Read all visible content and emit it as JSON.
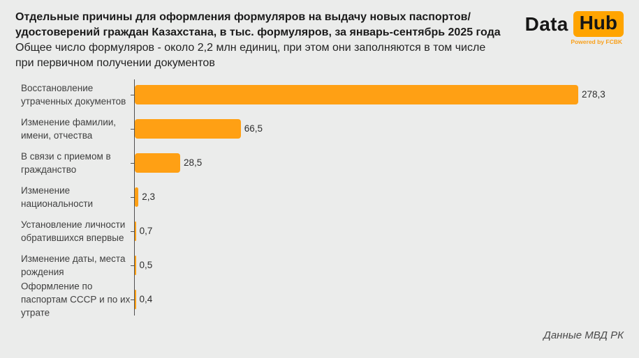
{
  "header": {
    "title_lines": [
      "Отдельные причины для оформления формуляров на выдачу новых паспортов/",
      "удостоверений граждан Казахстана, в тыс. формуляров, за январь-сентябрь 2025 года"
    ],
    "subtitle_lines": [
      "Общее число формуляров - около 2,2 млн единиц, при этом они заполняются в том числе",
      "при первичном получении документов"
    ]
  },
  "logo": {
    "part1": "Data",
    "part2": "Hub",
    "tagline": "Powered by FCBK",
    "accent_color": "#FFA400"
  },
  "chart_data": {
    "type": "bar",
    "orientation": "horizontal",
    "title": "Отдельные причины для оформления формуляров на выдачу новых паспортов/удостоверений граждан Казахстана, в тыс. формуляров, за январь-сентябрь 2025 года",
    "subtitle": "Общее число формуляров - около 2,2 млн единиц, при этом они заполняются в том числе при первичном получении документов",
    "unit": "тыс. формуляров",
    "categories": [
      "Восстановление утраченных документов",
      "Изменение фамилии, имени, отчества",
      "В связи с приемом в гражданство",
      "Изменение национальности",
      "Установление личности обратившихся впервые",
      "Изменение даты, места рождения",
      "Оформление по паспортам СССР и по их утрате"
    ],
    "values": [
      278.3,
      66.5,
      28.5,
      2.3,
      0.7,
      0.5,
      0.4
    ],
    "value_labels": [
      "278,3",
      "66,5",
      "28,5",
      "2,3",
      "0,7",
      "0,5",
      "0,4"
    ],
    "xlim": [
      0,
      300
    ],
    "grid": false,
    "legend": false,
    "bar_color": "#FFA014",
    "background_color": "#EBECEB"
  },
  "footer": {
    "source": "Данные МВД РК"
  }
}
